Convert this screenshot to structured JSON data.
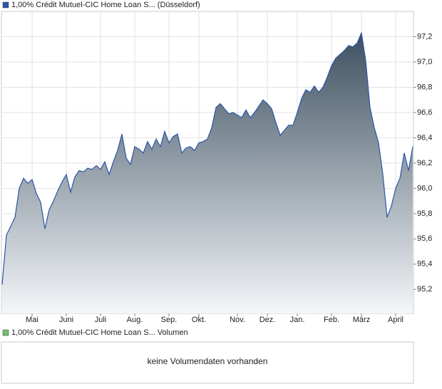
{
  "chart_data": [
    {
      "type": "area",
      "series": [
        {
          "name": "1,00% Crédit Mutuel-CIC Home Loan S... (Düsseldorf)",
          "color": "#2b55a8",
          "values": [
            95.24,
            95.63,
            95.7,
            95.77,
            96.0,
            96.08,
            96.04,
            96.07,
            95.96,
            95.89,
            95.68,
            95.83,
            95.9,
            95.98,
            96.05,
            96.11,
            95.97,
            96.09,
            96.14,
            96.13,
            96.16,
            96.15,
            96.18,
            96.15,
            96.21,
            96.11,
            96.21,
            96.3,
            96.43,
            96.24,
            96.19,
            96.33,
            96.31,
            96.28,
            96.37,
            96.31,
            96.39,
            96.33,
            96.45,
            96.36,
            96.41,
            96.43,
            96.28,
            96.32,
            96.33,
            96.3,
            96.36,
            96.37,
            96.39,
            96.48,
            96.64,
            96.67,
            96.63,
            96.59,
            96.6,
            96.58,
            96.56,
            96.62,
            96.56,
            96.6,
            96.65,
            96.7,
            96.67,
            96.63,
            96.52,
            96.42,
            96.46,
            96.5,
            96.5,
            96.6,
            96.71,
            96.78,
            96.76,
            96.81,
            96.76,
            96.8,
            96.88,
            96.97,
            97.03,
            97.06,
            97.09,
            97.13,
            97.12,
            97.15,
            97.23,
            97.01,
            96.64,
            96.48,
            96.36,
            96.11,
            95.77,
            95.86,
            96.0,
            96.08,
            96.28,
            96.14,
            96.33
          ]
        }
      ],
      "categories": [
        null,
        null,
        null,
        null,
        null,
        null,
        null,
        "Mai",
        null,
        null,
        null,
        null,
        null,
        null,
        null,
        "Juni",
        null,
        null,
        null,
        null,
        null,
        null,
        null,
        "Juli",
        null,
        null,
        null,
        null,
        null,
        null,
        null,
        "Aug.",
        null,
        null,
        null,
        null,
        null,
        null,
        null,
        "Sep.",
        null,
        null,
        null,
        null,
        null,
        null,
        "Okt.",
        null,
        null,
        null,
        null,
        null,
        null,
        null,
        null,
        "Nov.",
        null,
        null,
        null,
        null,
        null,
        null,
        "Dez.",
        null,
        null,
        null,
        null,
        null,
        null,
        "Jan.",
        null,
        null,
        null,
        null,
        null,
        null,
        null,
        "Feb.",
        null,
        null,
        null,
        null,
        null,
        null,
        "März",
        null,
        null,
        null,
        null,
        null,
        null,
        null,
        "April",
        null,
        null,
        null,
        null
      ],
      "ylim": [
        95.01,
        97.4
      ],
      "yticks": [
        {
          "value": 95.2,
          "label": "95,2"
        },
        {
          "value": 95.4,
          "label": "95,4"
        },
        {
          "value": 95.6,
          "label": "95,6"
        },
        {
          "value": 95.8,
          "label": "95,8"
        },
        {
          "value": 96.0,
          "label": "96,0"
        },
        {
          "value": 96.2,
          "label": "96,2"
        },
        {
          "value": 96.4,
          "label": "96,4"
        },
        {
          "value": 96.6,
          "label": "96,6"
        },
        {
          "value": 96.8,
          "label": "96,8"
        },
        {
          "value": 97.0,
          "label": "97,0"
        },
        {
          "value": 97.2,
          "label": "97,2"
        }
      ],
      "grid": true
    },
    {
      "type": "bar",
      "series": [
        {
          "name": "1,00% Crédit Mutuel-CIC Home Loan S... Volumen",
          "color": "#6cc06c",
          "values": []
        }
      ],
      "annotation": "keine Volumendaten vorhanden"
    }
  ]
}
